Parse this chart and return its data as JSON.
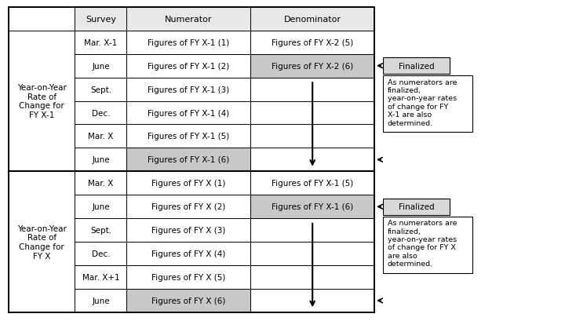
{
  "figsize": [
    7.34,
    4.1
  ],
  "dpi": 100,
  "bg_color": "#ffffff",
  "header_row": [
    "",
    "Survey",
    "Numerator",
    "Denominator"
  ],
  "block1_label": "Year-on-Year\nRate of\nChange for\nFY X-1",
  "block2_label": "Year-on-Year\nRate of\nChange for\nFY X",
  "block1_rows": [
    [
      "Mar. X-1",
      "Figures of FY X-1 (1)",
      "Figures of FY X-2 (5)",
      "none"
    ],
    [
      "June",
      "Figures of FY X-1 (2)",
      "Figures of FY X-2 (6)",
      "denom"
    ],
    [
      "Sept.",
      "Figures of FY X-1 (3)",
      "",
      "none"
    ],
    [
      "Dec.",
      "Figures of FY X-1 (4)",
      "",
      "none"
    ],
    [
      "Mar. X",
      "Figures of FY X-1 (5)",
      "",
      "none"
    ],
    [
      "June",
      "Figures of FY X-1 (6)",
      "",
      "numer"
    ]
  ],
  "block2_rows": [
    [
      "Mar. X",
      "Figures of FY X (1)",
      "Figures of FY X-1 (5)",
      "none"
    ],
    [
      "June",
      "Figures of FY X (2)",
      "Figures of FY X-1 (6)",
      "denom"
    ],
    [
      "Sept.",
      "Figures of FY X (3)",
      "",
      "none"
    ],
    [
      "Dec.",
      "Figures of FY X (4)",
      "",
      "none"
    ],
    [
      "Mar. X+1",
      "Figures of FY X (5)",
      "",
      "none"
    ],
    [
      "June",
      "Figures of FY X (6)",
      "",
      "numer"
    ]
  ],
  "finalized_text": "Finalized",
  "note1_text": "As numerators are\nfinalized,\nyear-on-year rates\nof change for FY\nX-1 are also\ndetermined.",
  "note2_text": "As numerators are\nfinalized,\nyear-on-year rates\nof change for FY X\nare also\ndetermined.",
  "highlight_color": "#c8c8c8",
  "finalized_bg": "#d8d8d8",
  "header_bg": "#e8e8e8",
  "border_color": "#000000",
  "text_color": "#000000",
  "font_size": 7.5,
  "header_font_size": 8,
  "note_font_size": 6.8
}
